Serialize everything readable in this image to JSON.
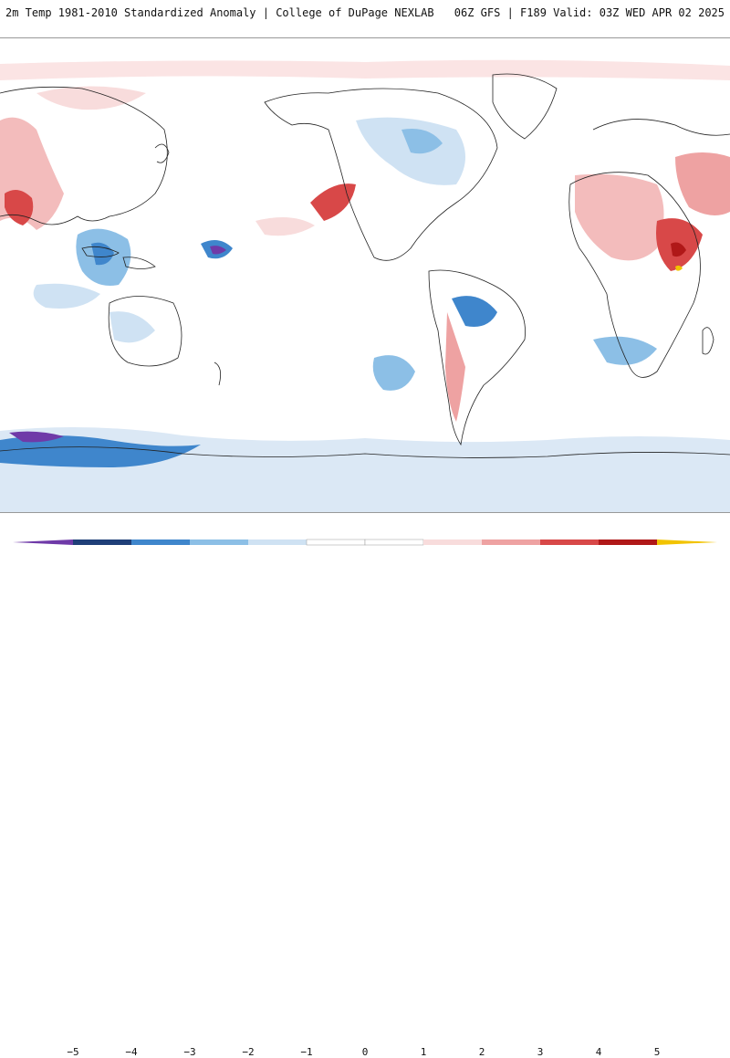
{
  "header": {
    "title_left": "2m Temp 1981-2010 Standardized Anomaly | College of DuPage NEXLAB",
    "title_right": "06Z GFS | F189 Valid: 03Z WED APR 02 2025"
  },
  "legend": {
    "ticks": [
      "−5",
      "−4",
      "−3",
      "−2",
      "−1",
      "0",
      "1",
      "2",
      "3",
      "4",
      "5"
    ],
    "colors": {
      "neg5": "#6f3aa8",
      "neg4": "#1f3f78",
      "neg3": "#3f86cc",
      "neg2": "#8cbfe6",
      "neg1": "#cfe2f3",
      "zero_neg": "#ffffff",
      "zero_pos": "#ffffff",
      "pos1": "#f8dcdc",
      "pos2": "#eea2a2",
      "pos3": "#d84848",
      "pos4": "#b01818",
      "pos5": "#7a0000",
      "max": "#f2c300"
    }
  }
}
